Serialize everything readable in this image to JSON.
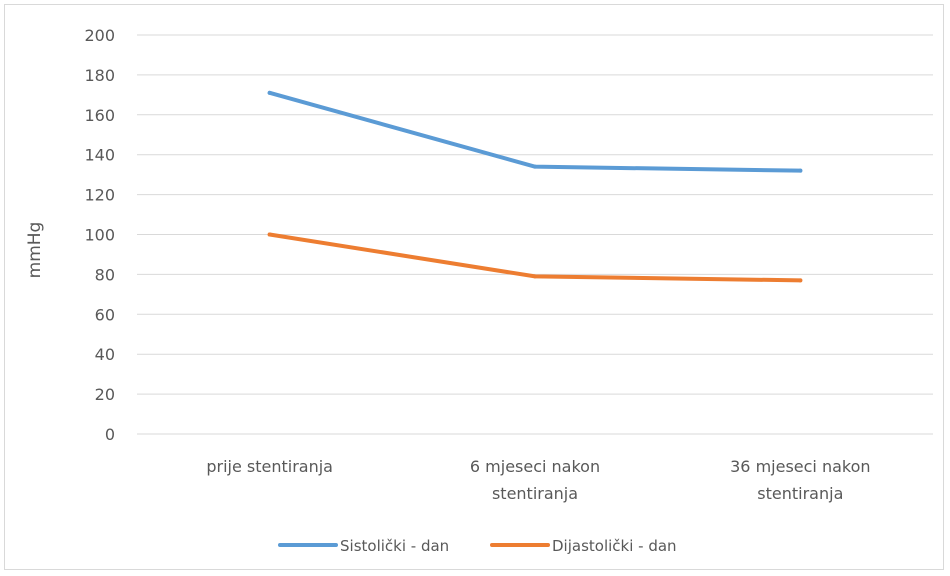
{
  "chart_data": {
    "type": "line",
    "title": "",
    "xlabel": "",
    "ylabel": "mmHg",
    "ylim": [
      0,
      200
    ],
    "yticks": [
      0,
      20,
      40,
      60,
      80,
      100,
      120,
      140,
      160,
      180,
      200
    ],
    "categories": [
      [
        "prije stentiranja"
      ],
      [
        "6 mjeseci nakon",
        "stentiranja"
      ],
      [
        "36 mjeseci nakon",
        "stentiranja"
      ]
    ],
    "series": [
      {
        "name": "Sistolički - dan",
        "color": "#5b9bd5",
        "values": [
          171,
          134,
          132
        ]
      },
      {
        "name": "Dijastolički - dan",
        "color": "#ed7d31",
        "values": [
          100,
          79,
          77
        ]
      }
    ],
    "grid": true,
    "legend": "bottom"
  }
}
